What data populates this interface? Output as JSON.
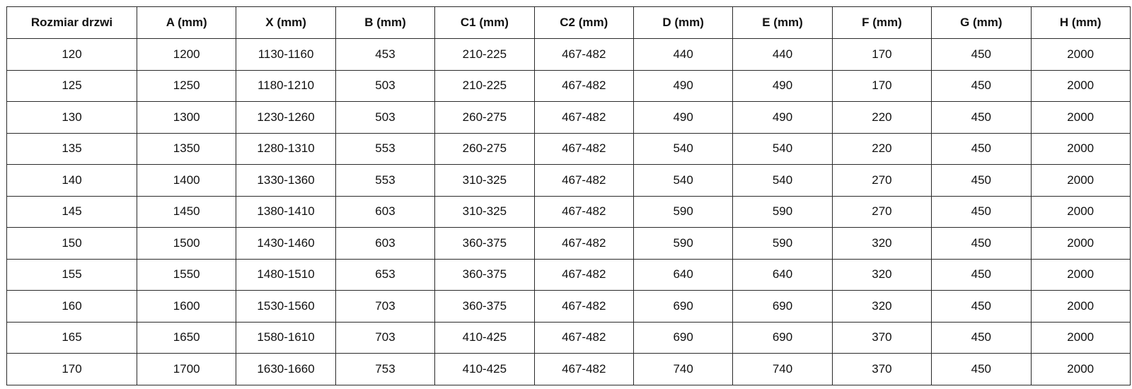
{
  "table": {
    "headers": [
      "Rozmiar drzwi",
      "A (mm)",
      "X (mm)",
      "B (mm)",
      "C1 (mm)",
      "C2 (mm)",
      "D (mm)",
      "E (mm)",
      "F (mm)",
      "G (mm)",
      "H (mm)"
    ],
    "rows": [
      [
        "120",
        "1200",
        "1130-1160",
        "453",
        "210-225",
        "467-482",
        "440",
        "440",
        "170",
        "450",
        "2000"
      ],
      [
        "125",
        "1250",
        "1180-1210",
        "503",
        "210-225",
        "467-482",
        "490",
        "490",
        "170",
        "450",
        "2000"
      ],
      [
        "130",
        "1300",
        "1230-1260",
        "503",
        "260-275",
        "467-482",
        "490",
        "490",
        "220",
        "450",
        "2000"
      ],
      [
        "135",
        "1350",
        "1280-1310",
        "553",
        "260-275",
        "467-482",
        "540",
        "540",
        "220",
        "450",
        "2000"
      ],
      [
        "140",
        "1400",
        "1330-1360",
        "553",
        "310-325",
        "467-482",
        "540",
        "540",
        "270",
        "450",
        "2000"
      ],
      [
        "145",
        "1450",
        "1380-1410",
        "603",
        "310-325",
        "467-482",
        "590",
        "590",
        "270",
        "450",
        "2000"
      ],
      [
        "150",
        "1500",
        "1430-1460",
        "603",
        "360-375",
        "467-482",
        "590",
        "590",
        "320",
        "450",
        "2000"
      ],
      [
        "155",
        "1550",
        "1480-1510",
        "653",
        "360-375",
        "467-482",
        "640",
        "640",
        "320",
        "450",
        "2000"
      ],
      [
        "160",
        "1600",
        "1530-1560",
        "703",
        "360-375",
        "467-482",
        "690",
        "690",
        "320",
        "450",
        "2000"
      ],
      [
        "165",
        "1650",
        "1580-1610",
        "703",
        "410-425",
        "467-482",
        "690",
        "690",
        "370",
        "450",
        "2000"
      ],
      [
        "170",
        "1700",
        "1630-1660",
        "753",
        "410-425",
        "467-482",
        "740",
        "740",
        "370",
        "450",
        "2000"
      ]
    ]
  }
}
